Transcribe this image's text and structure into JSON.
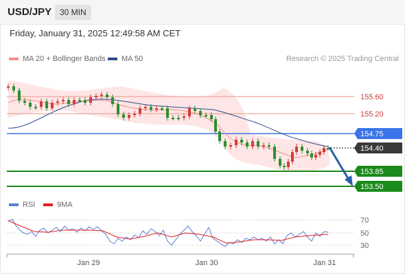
{
  "header": {
    "symbol": "USD/JPY",
    "timeframe": "30 MIN"
  },
  "datetime": "Friday, January 31, 2025 12:49:58 AM CET",
  "legend": {
    "ma20": {
      "label": "MA 20 + Bollinger Bands",
      "color": "#f2908c"
    },
    "ma50": {
      "label": "MA 50",
      "color": "#2e4a8c"
    }
  },
  "credit": "Research © 2025 Trading Central",
  "levels": [
    {
      "value": "155.60",
      "style": "red"
    },
    {
      "value": "155.20",
      "style": "red"
    },
    {
      "value": "154.75",
      "style": "blue"
    },
    {
      "value": "154.40",
      "style": "current"
    },
    {
      "value": "153.85",
      "style": "green"
    },
    {
      "value": "153.50",
      "style": "green"
    }
  ],
  "rsi_legend": {
    "rsi": {
      "label": "RSI",
      "color": "#5b7bd5"
    },
    "ma9": {
      "label": "9MA",
      "color": "#e02020"
    }
  },
  "rsi_ticks": [
    "70",
    "50",
    "30"
  ],
  "x_labels": [
    "Jan 29",
    "Jan 30",
    "Jan 31"
  ],
  "colors": {
    "up": "#d23c3c",
    "down": "#2f8f2f",
    "red_line": "#f2a3a0",
    "blue_line": "#3b74e8",
    "green_line": "#1a8a1a",
    "current": "#3a3a3a"
  }
}
